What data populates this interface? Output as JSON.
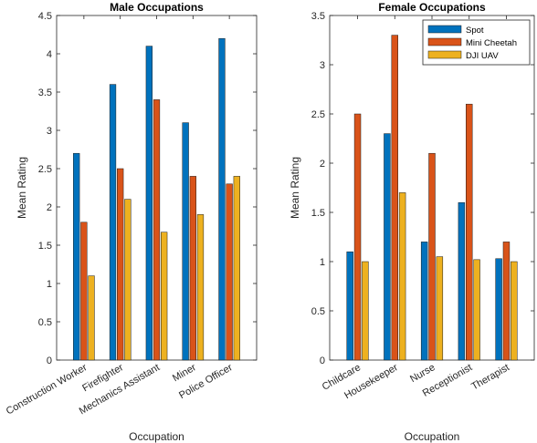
{
  "chart_data": [
    {
      "type": "bar",
      "title": "Male Occupations",
      "xlabel": "Occupation",
      "ylabel": "Mean Rating",
      "ylim": [
        0,
        4.5
      ],
      "yticks": [
        0,
        0.5,
        1,
        1.5,
        2,
        2.5,
        3,
        3.5,
        4,
        4.5
      ],
      "ytick_labels": [
        "0",
        "0.5",
        "1",
        "1.5",
        "2",
        "2.5",
        "3",
        "3.5",
        "4",
        "4.5"
      ],
      "categories": [
        "Construction Worker",
        "Firefighter",
        "Mechanics Assistant",
        "Miner",
        "Police Officer"
      ],
      "series": [
        {
          "name": "Spot",
          "color": "#0072BD",
          "values": [
            2.7,
            3.6,
            4.1,
            3.1,
            4.2
          ]
        },
        {
          "name": "Mini Cheetah",
          "color": "#D95319",
          "values": [
            1.8,
            2.5,
            3.4,
            2.4,
            2.3
          ]
        },
        {
          "name": "DJI UAV",
          "color": "#EDB120",
          "values": [
            1.1,
            2.1,
            1.67,
            1.9,
            2.4
          ]
        }
      ],
      "legend": "none",
      "grid": false
    },
    {
      "type": "bar",
      "title": "Female Occupations",
      "xlabel": "Occupation",
      "ylabel": "Mean Rating",
      "ylim": [
        0,
        3.5
      ],
      "yticks": [
        0,
        0.5,
        1,
        1.5,
        2,
        2.5,
        3,
        3.5
      ],
      "ytick_labels": [
        "0",
        "0.5",
        "1",
        "1.5",
        "2",
        "2.5",
        "3",
        "3.5"
      ],
      "categories": [
        "Childcare",
        "Housekeeper",
        "Nurse",
        "Receptionist",
        "Therapist"
      ],
      "series": [
        {
          "name": "Spot",
          "color": "#0072BD",
          "values": [
            1.1,
            2.3,
            1.2,
            1.6,
            1.03
          ]
        },
        {
          "name": "Mini Cheetah",
          "color": "#D95319",
          "values": [
            2.5,
            3.3,
            2.1,
            2.6,
            1.2
          ]
        },
        {
          "name": "DJI UAV",
          "color": "#EDB120",
          "values": [
            1.0,
            1.7,
            1.05,
            1.02,
            1.0
          ]
        }
      ],
      "legend": "top-right",
      "grid": false
    }
  ]
}
